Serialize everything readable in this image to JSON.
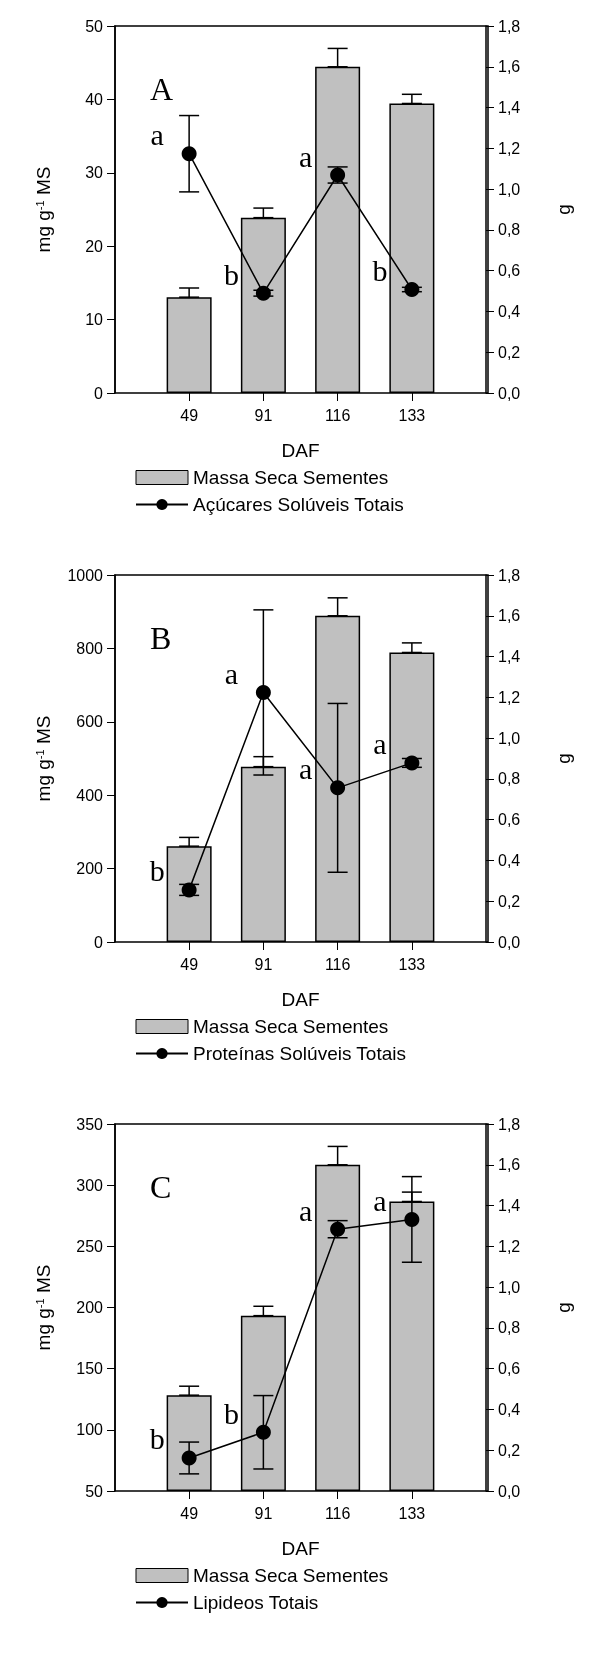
{
  "chart_data": [
    {
      "type": "bar",
      "title": "A",
      "xlabel": "DAF",
      "ylabel": "mg g$^{-1}$ MS",
      "y2label": "g",
      "categories": [
        "49",
        "91",
        "116",
        "133"
      ],
      "legend": "bottom",
      "marker": "circle",
      "series": [
        {
          "name": "Massa Seca Sementes",
          "axis": "y2",
          "color": "#c0c0c0",
          "values": [
            0.47,
            0.86,
            1.6,
            1.42
          ],
          "errors": [
            [
              0.47,
              0.515
            ],
            [
              0.86,
              0.907
            ],
            [
              1.6,
              1.69
            ],
            [
              1.42,
              1.465
            ]
          ]
        },
        {
          "name": "Açúcares Solúveis Totais",
          "type": "line",
          "color": "#000000",
          "values": [
            32.6,
            13.6,
            29.7,
            14.1
          ],
          "errors": [
            5.2,
            0.4,
            1.1,
            0.3
          ]
        }
      ],
      "ylim": [
        0,
        50
      ],
      "yticks": [
        0,
        10,
        20,
        30,
        40,
        50
      ],
      "y2lim": [
        0,
        1.8
      ],
      "y2ticks": [
        {
          "value": 0,
          "label": "0,0"
        },
        {
          "value": 0.2,
          "label": "0,2"
        },
        {
          "value": 0.4,
          "label": "0,4"
        },
        {
          "value": 0.6,
          "label": "0,6"
        },
        {
          "value": 0.8,
          "label": "0,8"
        },
        {
          "value": 1,
          "label": "1,0"
        },
        {
          "value": 1.2,
          "label": "1,2"
        },
        {
          "value": 1.4,
          "label": "1,4"
        },
        {
          "value": 1.6,
          "label": "1,6"
        },
        {
          "value": 1.8,
          "label": "1,8"
        }
      ],
      "annotations": [
        {
          "text": "a",
          "x": "49",
          "y": 32.6
        },
        {
          "text": "b",
          "x": "91",
          "y": 13.6
        },
        {
          "text": "a",
          "x": "116",
          "y": 29.7
        },
        {
          "text": "b",
          "x": "133",
          "y": 14.1
        }
      ]
    },
    {
      "type": "bar",
      "title": "B",
      "xlabel": "DAF",
      "ylabel": "mg g$^{-1}$ MS",
      "y2label": "g",
      "categories": [
        "49",
        "91",
        "116",
        "133"
      ],
      "legend": "bottom",
      "marker": "circle",
      "series": [
        {
          "name": "Massa Seca Sementes",
          "axis": "y2",
          "color": "#c0c0c0",
          "values": [
            0.47,
            0.86,
            1.6,
            1.42
          ],
          "errors": [
            [
              0.47,
              0.513
            ],
            [
              0.86,
              0.909
            ],
            [
              1.6,
              1.688
            ],
            [
              1.42,
              1.467
            ]
          ]
        },
        {
          "name": "Proteínas Solúveis Totais",
          "type": "line",
          "color": "#000000",
          "values": [
            142,
            680,
            420,
            488
          ],
          "errors": [
            15,
            225,
            230,
            12
          ]
        }
      ],
      "ylim": [
        0,
        1000
      ],
      "yticks": [
        0,
        200,
        400,
        600,
        800,
        1000
      ],
      "y2lim": [
        0,
        1.8
      ],
      "y2ticks": [
        {
          "value": 0,
          "label": "0,0"
        },
        {
          "value": 0.2,
          "label": "0,2"
        },
        {
          "value": 0.4,
          "label": "0,4"
        },
        {
          "value": 0.6,
          "label": "0,6"
        },
        {
          "value": 0.8,
          "label": "0,8"
        },
        {
          "value": 1,
          "label": "1,0"
        },
        {
          "value": 1.2,
          "label": "1,2"
        },
        {
          "value": 1.4,
          "label": "1,4"
        },
        {
          "value": 1.6,
          "label": "1,6"
        },
        {
          "value": 1.8,
          "label": "1,8"
        }
      ],
      "annotations": [
        {
          "text": "b",
          "x": "49",
          "y": 142
        },
        {
          "text": "a",
          "x": "91",
          "y": 680
        },
        {
          "text": "a",
          "x": "116",
          "y": 420
        },
        {
          "text": "a",
          "x": "133",
          "y": 488
        }
      ]
    },
    {
      "type": "bar",
      "title": "C",
      "xlabel": "DAF",
      "ylabel": "mg g$^{-1}$ MS",
      "y2label": "g",
      "categories": [
        "49",
        "91",
        "116",
        "133"
      ],
      "legend": "bottom",
      "marker": "circle",
      "series": [
        {
          "name": "Massa Seca Sementes",
          "axis": "y2",
          "color": "#c0c0c0",
          "values": [
            0.47,
            0.86,
            1.6,
            1.42
          ],
          "errors": [
            [
              0.47,
              0.514
            ],
            [
              0.86,
              0.906
            ],
            [
              1.6,
              1.69
            ],
            [
              1.42,
              1.466
            ]
          ]
        },
        {
          "name": "Lipideos Totais",
          "type": "line",
          "color": "#000000",
          "values": [
            77,
            98,
            264,
            272
          ],
          "errors": [
            13,
            30,
            7,
            35
          ]
        }
      ],
      "ylim": [
        50,
        350
      ],
      "yticks": [
        50,
        100,
        150,
        200,
        250,
        300,
        350
      ],
      "y2lim": [
        0,
        1.8
      ],
      "y2ticks": [
        {
          "value": 0,
          "label": "0,0"
        },
        {
          "value": 0.2,
          "label": "0,2"
        },
        {
          "value": 0.4,
          "label": "0,4"
        },
        {
          "value": 0.6,
          "label": "0,6"
        },
        {
          "value": 0.8,
          "label": "0,8"
        },
        {
          "value": 1,
          "label": "1,0"
        },
        {
          "value": 1.2,
          "label": "1,2"
        },
        {
          "value": 1.4,
          "label": "1,4"
        },
        {
          "value": 1.6,
          "label": "1,6"
        },
        {
          "value": 1.8,
          "label": "1,8"
        }
      ],
      "annotations": [
        {
          "text": "b",
          "x": "49",
          "y": 77
        },
        {
          "text": "b",
          "x": "91",
          "y": 98
        },
        {
          "text": "a",
          "x": "116",
          "y": 264
        },
        {
          "text": "a",
          "x": "133",
          "y": 272
        }
      ]
    }
  ]
}
